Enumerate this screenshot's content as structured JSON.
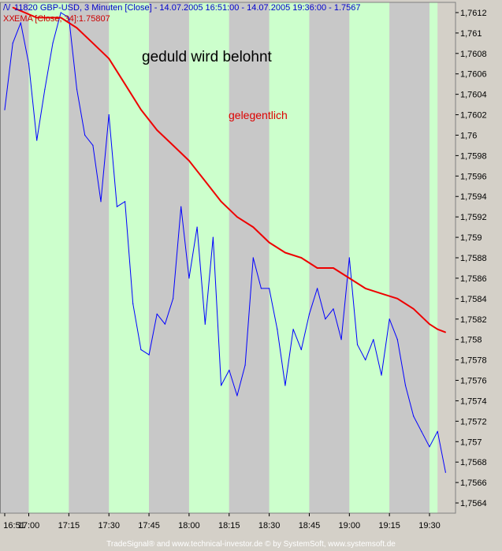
{
  "legend": {
    "line1_icon": "/\\/",
    "line1": "11820  GBP-USD, 3 Minuten [Close] - 14.07.2005 16:51:00 - 14.07.2005 19:36:00 - 1.7567",
    "line2_icon": "XX",
    "line2": "EMA [Close, 34]:1.75807"
  },
  "footer": "TradeSignal® and www.technical-investor.de © by  SystemSoft, www.systemsoft.de",
  "annotations": {
    "main": "geduld wird belohnt",
    "sub": "gelegentlich"
  },
  "colors": {
    "price": "#0000ff",
    "ema": "#ee0000",
    "band_light": "#ccffcc",
    "band_gray": "#c8c8c8",
    "frame": "#d4d0c8"
  },
  "chart_data": {
    "type": "line",
    "title": "11820  GBP-USD, 3 Minuten [Close] - 14.07.2005 16:51:00 - 14.07.2005 19:36:00 - 1.7567",
    "xlabel": "",
    "ylabel": "",
    "x_ticks": [
      "16:51",
      "17:00",
      "17:15",
      "17:30",
      "17:45",
      "18:00",
      "18:15",
      "18:30",
      "18:45",
      "19:00",
      "19:15",
      "19:30"
    ],
    "x_tick_minutes": [
      0,
      9,
      24,
      39,
      54,
      69,
      84,
      99,
      114,
      129,
      144,
      159
    ],
    "y_ticks": [
      "1,7612",
      "1,761",
      "1,7608",
      "1,7606",
      "1,7604",
      "1,7602",
      "1,76",
      "1,7598",
      "1,7596",
      "1,7594",
      "1,7592",
      "1,759",
      "1,7588",
      "1,7586",
      "1,7584",
      "1,7582",
      "1,758",
      "1,7578",
      "1,7576",
      "1,7574",
      "1,7572",
      "1,757",
      "1,7568",
      "1,7566",
      "1,7564"
    ],
    "ylim": [
      1.7563,
      1.7613
    ],
    "x_range": [
      "16:51",
      "19:33"
    ],
    "series": [
      {
        "name": "GBP-USD, 3 Minuten [Close]",
        "x": [
          "16:51",
          "16:54",
          "16:57",
          "17:00",
          "17:03",
          "17:06",
          "17:09",
          "17:12",
          "17:15",
          "17:18",
          "17:21",
          "17:24",
          "17:27",
          "17:30",
          "17:33",
          "17:36",
          "17:39",
          "17:42",
          "17:45",
          "17:48",
          "17:51",
          "17:54",
          "17:57",
          "18:00",
          "18:03",
          "18:06",
          "18:09",
          "18:12",
          "18:15",
          "18:18",
          "18:21",
          "18:24",
          "18:27",
          "18:30",
          "18:33",
          "18:36",
          "18:39",
          "18:42",
          "18:45",
          "18:48",
          "18:51",
          "18:54",
          "18:57",
          "19:00",
          "19:03",
          "19:06",
          "19:09",
          "19:12",
          "19:15",
          "19:18",
          "19:21",
          "19:24",
          "19:27",
          "19:30",
          "19:33",
          "19:36"
        ],
        "values": [
          1.76025,
          1.7609,
          1.7611,
          1.7607,
          1.75995,
          1.76045,
          1.7609,
          1.7612,
          1.76115,
          1.76045,
          1.76,
          1.7599,
          1.75935,
          1.7602,
          1.7593,
          1.75935,
          1.75835,
          1.7579,
          1.75785,
          1.75825,
          1.75815,
          1.7584,
          1.7593,
          1.7586,
          1.7591,
          1.75815,
          1.759,
          1.75755,
          1.7577,
          1.75745,
          1.75775,
          1.7588,
          1.7585,
          1.7585,
          1.7581,
          1.75755,
          1.7581,
          1.7579,
          1.75825,
          1.7585,
          1.7582,
          1.7583,
          1.758,
          1.7588,
          1.75795,
          1.7578,
          1.758,
          1.75765,
          1.7582,
          1.758,
          1.75755,
          1.75725,
          1.7571,
          1.75695,
          1.7571,
          1.7567
        ]
      },
      {
        "name": "EMA [Close, 34]",
        "x": [
          "16:54",
          "17:03",
          "17:09",
          "17:12",
          "17:18",
          "17:24",
          "17:30",
          "17:36",
          "17:42",
          "17:48",
          "17:54",
          "18:00",
          "18:06",
          "18:12",
          "18:18",
          "18:24",
          "18:30",
          "18:36",
          "18:42",
          "18:48",
          "18:54",
          "19:00",
          "19:06",
          "19:12",
          "19:18",
          "19:24",
          "19:30",
          "19:33",
          "19:36"
        ],
        "values": [
          1.76125,
          1.76115,
          1.76115,
          1.76115,
          1.76105,
          1.7609,
          1.76075,
          1.7605,
          1.76025,
          1.76005,
          1.7599,
          1.75975,
          1.75955,
          1.75935,
          1.7592,
          1.7591,
          1.75895,
          1.75885,
          1.7588,
          1.7587,
          1.7587,
          1.7586,
          1.7585,
          1.75845,
          1.7584,
          1.7583,
          1.75815,
          1.7581,
          1.75807
        ]
      }
    ]
  }
}
